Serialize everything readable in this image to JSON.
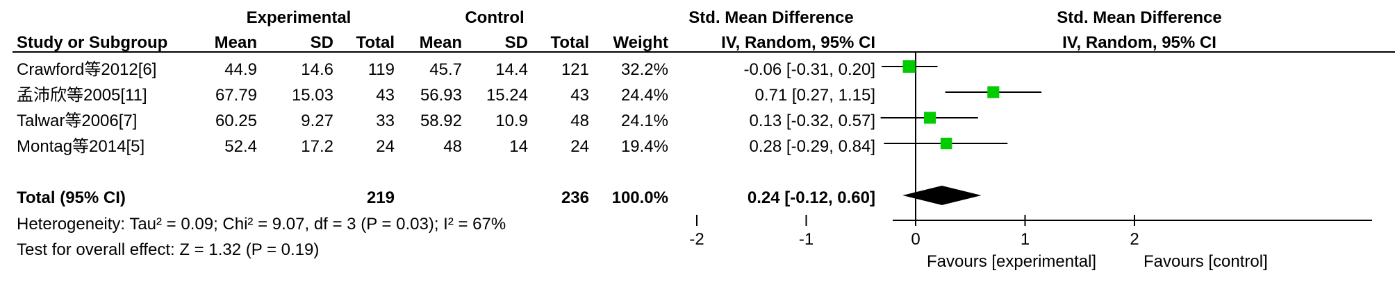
{
  "headers": {
    "experimental": "Experimental",
    "control": "Control",
    "smd": "Std. Mean Difference",
    "study": "Study or Subgroup",
    "mean_e": "Mean",
    "sd_e": "SD",
    "total_e": "Total",
    "mean_c": "Mean",
    "sd_c": "SD",
    "total_c": "Total",
    "weight": "Weight",
    "method": "IV, Random, 95% CI",
    "plot_title": "Std. Mean Difference",
    "plot_method": "IV, Random, 95% CI"
  },
  "rows": [
    {
      "study": "Crawford等2012[6]",
      "mean_e": "44.9",
      "sd_e": "14.6",
      "total_e": "119",
      "mean_c": "45.7",
      "sd_c": "14.4",
      "total_c": "121",
      "weight": "32.2%",
      "ci": "-0.06 [-0.31, 0.20]"
    },
    {
      "study": "孟沛欣等2005[11]",
      "mean_e": "67.79",
      "sd_e": "15.03",
      "total_e": "43",
      "mean_c": "56.93",
      "sd_c": "15.24",
      "total_c": "43",
      "weight": "24.4%",
      "ci": "0.71 [0.27, 1.15]"
    },
    {
      "study": "Talwar等2006[7]",
      "mean_e": "60.25",
      "sd_e": "9.27",
      "total_e": "33",
      "mean_c": "58.92",
      "sd_c": "10.9",
      "total_c": "48",
      "weight": "24.1%",
      "ci": "0.13 [-0.32, 0.57]"
    },
    {
      "study": "Montag等2014[5]",
      "mean_e": "52.4",
      "sd_e": "17.2",
      "total_e": "24",
      "mean_c": "48",
      "sd_c": "14",
      "total_c": "24",
      "weight": "19.4%",
      "ci": "0.28 [-0.29, 0.84]"
    }
  ],
  "total": {
    "label": "Total (95% CI)",
    "total_e": "219",
    "total_c": "236",
    "weight": "100.0%",
    "ci": "0.24 [-0.12, 0.60]"
  },
  "heterogeneity": "Heterogeneity: Tau² = 0.09; Chi² = 9.07, df = 3 (P = 0.03); I² = 67%",
  "overall_effect": "Test for overall effect: Z = 1.32 (P = 0.19)",
  "colors": {
    "marker": "#00cc00",
    "diamond": "#000000",
    "line": "#000000"
  },
  "chart_data": {
    "type": "forest",
    "title": "Std. Mean Difference",
    "subtitle": "IV, Random, 95% CI",
    "xlim": [
      -2,
      2
    ],
    "ticks": [
      "-2",
      "-1",
      "0",
      "1",
      "2"
    ],
    "tick_values": [
      -2,
      -1,
      0,
      1,
      2
    ],
    "xlabel_left": "Favours [experimental]",
    "xlabel_right": "Favours [control]",
    "studies": [
      {
        "name": "Crawford等2012[6]",
        "estimate": -0.06,
        "lower": -0.31,
        "upper": 0.2,
        "weight": 32.2
      },
      {
        "name": "孟沛欣等2005[11]",
        "estimate": 0.71,
        "lower": 0.27,
        "upper": 1.15,
        "weight": 24.4
      },
      {
        "name": "Talwar等2006[7]",
        "estimate": 0.13,
        "lower": -0.32,
        "upper": 0.57,
        "weight": 24.1
      },
      {
        "name": "Montag等2014[5]",
        "estimate": 0.28,
        "lower": -0.29,
        "upper": 0.84,
        "weight": 19.4
      }
    ],
    "pooled": {
      "estimate": 0.24,
      "lower": -0.12,
      "upper": 0.6
    }
  }
}
